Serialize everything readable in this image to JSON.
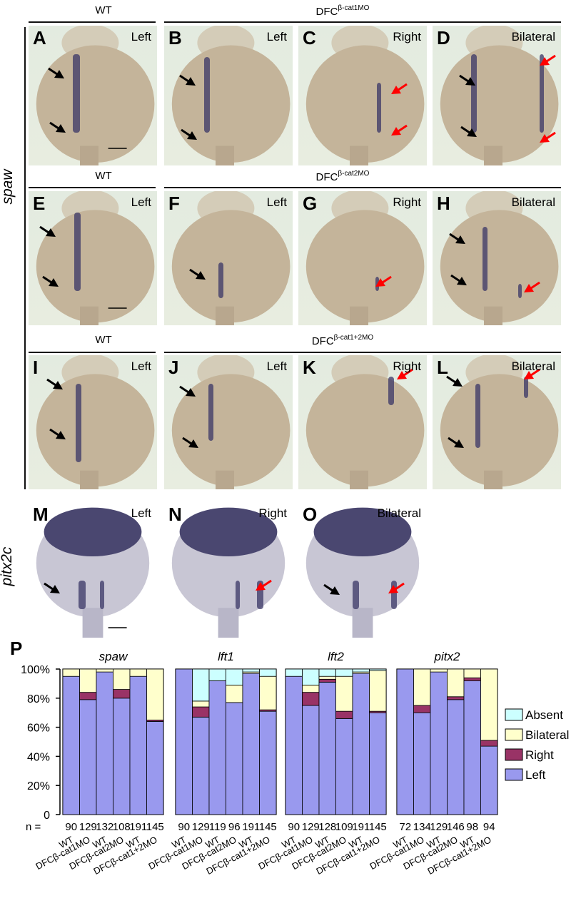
{
  "headers": {
    "row1_wt": "WT",
    "row1_mo": "DFC",
    "row1_mo_sup": "β-cat1MO",
    "row2_wt": "WT",
    "row2_mo": "DFC",
    "row2_mo_sup": "β-cat2MO",
    "row3_wt": "WT",
    "row3_mo": "DFC",
    "row3_mo_sup": "β-cat1+2MO"
  },
  "side_labels": {
    "spaw": "spaw",
    "pitx2c": "pitx2c"
  },
  "panels": [
    {
      "letter": "A",
      "label": "Left"
    },
    {
      "letter": "B",
      "label": "Left"
    },
    {
      "letter": "C",
      "label": "Right"
    },
    {
      "letter": "D",
      "label": "Bilateral"
    },
    {
      "letter": "E",
      "label": "Left"
    },
    {
      "letter": "F",
      "label": "Left"
    },
    {
      "letter": "G",
      "label": "Right"
    },
    {
      "letter": "H",
      "label": "Bilateral"
    },
    {
      "letter": "I",
      "label": "Left"
    },
    {
      "letter": "J",
      "label": "Left"
    },
    {
      "letter": "K",
      "label": "Right"
    },
    {
      "letter": "L",
      "label": "Bilateral"
    },
    {
      "letter": "M",
      "label": "Left"
    },
    {
      "letter": "N",
      "label": "Right"
    },
    {
      "letter": "O",
      "label": "Bilateral"
    }
  ],
  "colors": {
    "left": "#9999ee",
    "right": "#993366",
    "bilateral": "#ffffcc",
    "absent": "#ccffff",
    "arrow_black": "#000000",
    "arrow_red": "#ff0000",
    "stain": "#3a3565"
  },
  "chart_letter": "P",
  "chart_data": {
    "type": "bar",
    "stacked": true,
    "yticks": [
      "100%",
      "80%",
      "60%",
      "40%",
      "20%",
      "0"
    ],
    "ylim": [
      0,
      100
    ],
    "n_prefix": "n =",
    "legend": [
      "Absent",
      "Bilateral",
      "Right",
      "Left"
    ],
    "categories": [
      "WT",
      "DFCβ-cat1MO",
      "WT",
      "DFCβ-cat2MO",
      "WT",
      "DFCβ-cat1+2MO"
    ],
    "groups": [
      {
        "title": "spaw",
        "n": [
          "90",
          "129",
          "132",
          "108",
          "191",
          "145"
        ],
        "left": [
          95,
          79,
          98,
          80,
          95,
          64
        ],
        "right": [
          0,
          5,
          0,
          6,
          0,
          1
        ],
        "bilateral": [
          5,
          16,
          2,
          14,
          5,
          35
        ],
        "absent": [
          0,
          0,
          0,
          0,
          0,
          0
        ]
      },
      {
        "title": "lft1",
        "n": [
          "90",
          "129",
          "119",
          "96",
          "191",
          "145"
        ],
        "left": [
          100,
          67,
          92,
          77,
          97,
          71
        ],
        "right": [
          0,
          7,
          0,
          0,
          0,
          1
        ],
        "bilateral": [
          0,
          4,
          0,
          12,
          1,
          23
        ],
        "absent": [
          0,
          22,
          8,
          11,
          2,
          5
        ]
      },
      {
        "title": "lft2",
        "n": [
          "90",
          "129",
          "128",
          "109",
          "191",
          "145"
        ],
        "left": [
          95,
          75,
          91,
          66,
          97,
          70
        ],
        "right": [
          0,
          9,
          2,
          5,
          0,
          1
        ],
        "bilateral": [
          0,
          5,
          2,
          24,
          1,
          28
        ],
        "absent": [
          5,
          11,
          5,
          5,
          2,
          1
        ]
      },
      {
        "title": "pitx2",
        "n": [
          "72",
          "134",
          "129",
          "146",
          "98",
          "94"
        ],
        "left": [
          100,
          70,
          98,
          79,
          92,
          47
        ],
        "right": [
          0,
          5,
          0,
          2,
          2,
          4
        ],
        "bilateral": [
          0,
          25,
          2,
          19,
          6,
          49
        ],
        "absent": [
          0,
          0,
          0,
          0,
          0,
          0
        ]
      }
    ]
  }
}
